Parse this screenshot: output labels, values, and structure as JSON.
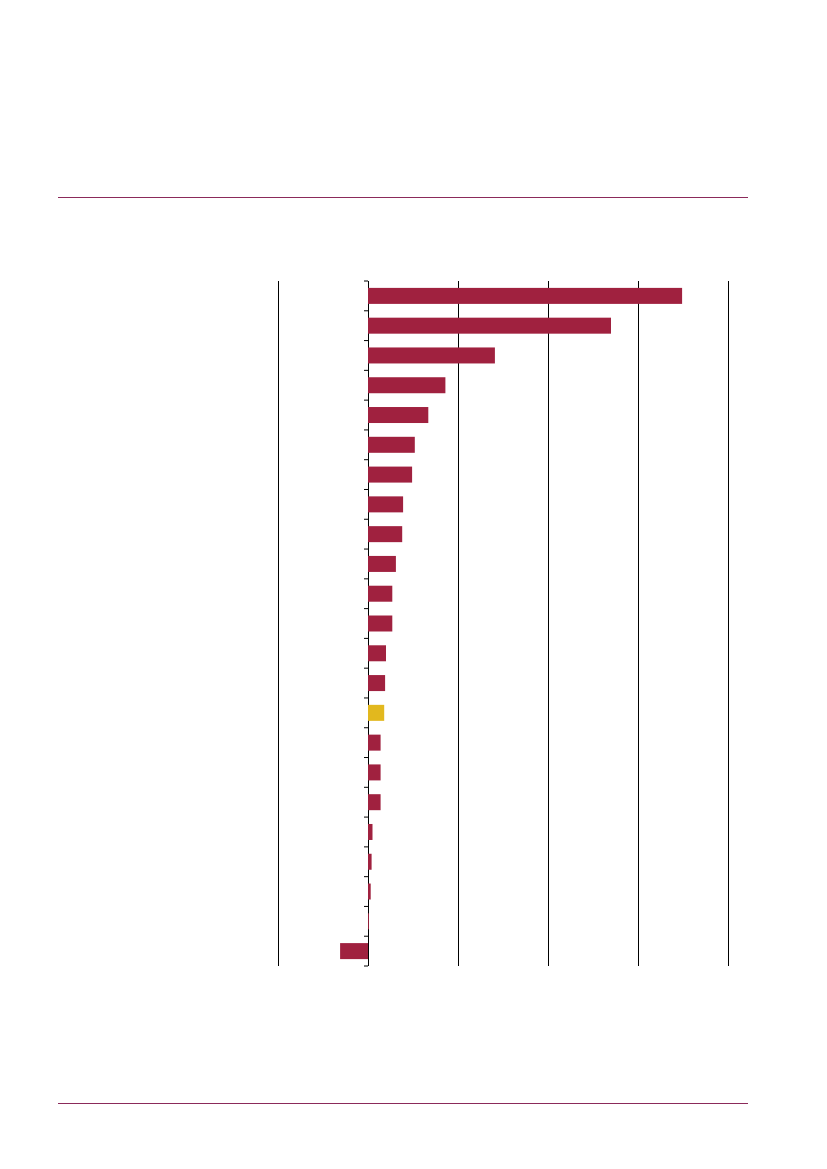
{
  "chart_data": {
    "type": "bar",
    "orientation": "horizontal",
    "categories": [
      null,
      null,
      null,
      null,
      null,
      null,
      null,
      null,
      null,
      null,
      null,
      null,
      null,
      null,
      null,
      null,
      null,
      null,
      null,
      null,
      null,
      null,
      null
    ],
    "values": [
      3.49,
      2.7,
      1.41,
      0.86,
      0.67,
      0.52,
      0.49,
      0.39,
      0.38,
      0.31,
      0.27,
      0.27,
      0.2,
      0.19,
      0.18,
      0.14,
      0.14,
      0.14,
      0.05,
      0.04,
      0.03,
      0.01,
      -0.31
    ],
    "colors": [
      "#a0213f",
      "#a0213f",
      "#a0213f",
      "#a0213f",
      "#a0213f",
      "#a0213f",
      "#a0213f",
      "#a0213f",
      "#a0213f",
      "#a0213f",
      "#a0213f",
      "#a0213f",
      "#a0213f",
      "#a0213f",
      "#e2b81e",
      "#a0213f",
      "#a0213f",
      "#a0213f",
      "#a0213f",
      "#a0213f",
      "#a0213f",
      "#a0213f",
      "#a0213f"
    ],
    "xlim": [
      -1,
      4
    ],
    "xticks": [
      -1,
      0,
      1,
      2,
      3,
      4
    ],
    "grid": true
  }
}
